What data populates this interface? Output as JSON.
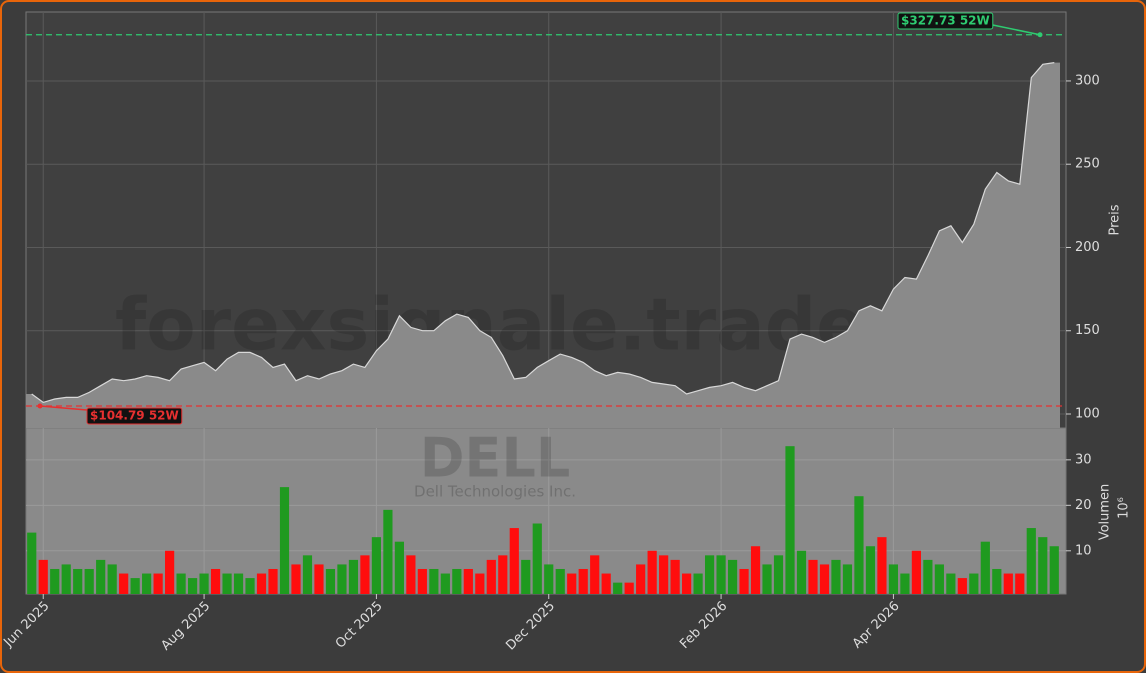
{
  "watermark": "forexsignale.trade",
  "chart_data": [
    {
      "type": "area",
      "y_label": "Preis",
      "values": [
        112,
        107,
        109,
        110,
        110,
        113,
        117,
        121,
        120,
        121,
        123,
        122,
        120,
        127,
        129,
        131,
        126,
        133,
        137,
        137,
        134,
        128,
        130,
        120,
        123,
        121,
        124,
        126,
        130,
        128,
        138,
        145,
        159,
        152,
        150,
        150,
        156,
        160,
        158,
        150,
        146,
        135,
        121,
        122,
        128,
        132,
        136,
        134,
        131,
        126,
        123,
        125,
        124,
        122,
        119,
        118,
        117,
        112,
        114,
        116,
        117,
        119,
        116,
        114,
        117,
        120,
        145,
        148,
        146,
        143,
        146,
        150,
        162,
        165,
        162,
        175,
        182,
        181,
        195,
        210,
        213,
        203,
        214,
        235,
        245,
        240,
        238,
        302,
        310,
        311
      ],
      "ylim": [
        91.6,
        341.4
      ],
      "yticks": [
        100,
        150,
        200,
        250,
        300
      ],
      "grid": true,
      "color": "#8a8a8a",
      "line_color": "#d8d8d8",
      "reference_lines": [
        {
          "value": 327.73,
          "label": "$327.73 52W",
          "color": "#2ecc71"
        },
        {
          "value": 104.79,
          "label": "$104.79 52W",
          "color": "#e63030"
        }
      ]
    },
    {
      "type": "bar",
      "symbol": "DELL",
      "name": "Dell Technologies Inc.",
      "y_label": "Volumen",
      "y_unit": "10⁶",
      "categories": [
        null,
        "Jun 2025",
        null,
        null,
        null,
        null,
        null,
        null,
        null,
        null,
        null,
        null,
        null,
        null,
        null,
        "Aug 2025",
        null,
        null,
        null,
        null,
        null,
        null,
        null,
        null,
        null,
        null,
        null,
        null,
        null,
        null,
        "Oct 2025",
        null,
        null,
        null,
        null,
        null,
        null,
        null,
        null,
        null,
        null,
        null,
        null,
        null,
        null,
        "Dec 2025",
        null,
        null,
        null,
        null,
        null,
        null,
        null,
        null,
        null,
        null,
        null,
        null,
        null,
        null,
        "Feb 2026",
        null,
        null,
        null,
        null,
        null,
        null,
        null,
        null,
        null,
        null,
        null,
        null,
        null,
        null,
        "Apr 2026",
        null,
        null,
        null,
        null,
        null,
        null,
        null,
        null,
        null,
        null,
        null,
        null,
        null,
        null
      ],
      "values": [
        14,
        8,
        6,
        7,
        6,
        6,
        8,
        7,
        5,
        4,
        5,
        5,
        10,
        5,
        4,
        5,
        6,
        5,
        5,
        4,
        5,
        6,
        24,
        7,
        9,
        7,
        6,
        7,
        8,
        9,
        13,
        19,
        12,
        9,
        6,
        6,
        5,
        6,
        6,
        5,
        8,
        9,
        15,
        8,
        16,
        7,
        6,
        5,
        6,
        9,
        5,
        3,
        3,
        7,
        10,
        9,
        8,
        5,
        5,
        9,
        9,
        8,
        6,
        11,
        7,
        9,
        33,
        10,
        8,
        7,
        8,
        7,
        22,
        11,
        13,
        7,
        5,
        10,
        8,
        7,
        5,
        4,
        5,
        12,
        6,
        5,
        5,
        15,
        13,
        11
      ],
      "ylim": [
        0.5,
        37
      ],
      "yticks": [
        10,
        20,
        30
      ],
      "grid": true,
      "up_color": "#1f9a1f",
      "down_color": "#ff0d0d"
    }
  ]
}
